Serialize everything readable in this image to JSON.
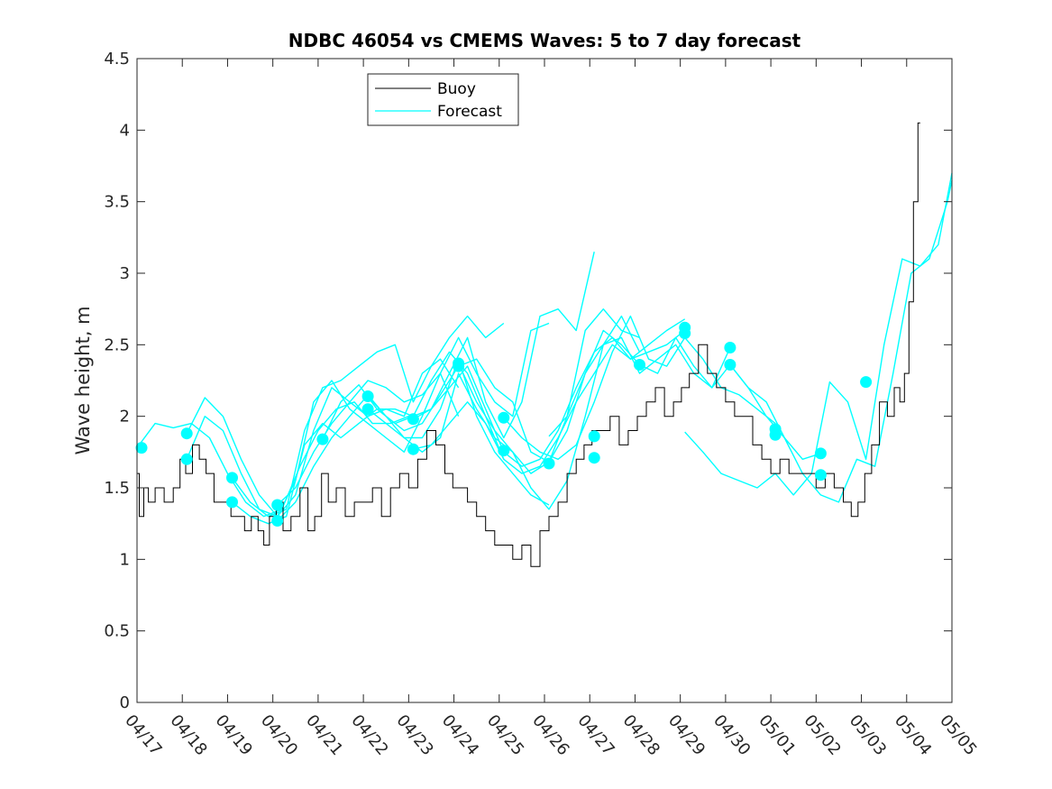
{
  "chart_data": {
    "type": "line",
    "title": "NDBC 46054 vs CMEMS Waves: 5 to 7 day forecast",
    "xlabel": "",
    "ylabel": "Wave height, m",
    "xlim": [
      "04/17",
      "05/05"
    ],
    "ylim": [
      0,
      4.5
    ],
    "yticks": [
      "0",
      "0.5",
      "1",
      "1.5",
      "2",
      "2.5",
      "3",
      "3.5",
      "4",
      "4.5"
    ],
    "xticks": [
      "04/17",
      "04/18",
      "04/19",
      "04/20",
      "04/21",
      "04/22",
      "04/23",
      "04/24",
      "04/25",
      "04/26",
      "04/27",
      "04/28",
      "04/29",
      "04/30",
      "05/01",
      "05/02",
      "05/03",
      "05/04",
      "05/05"
    ],
    "grid": false,
    "legend": {
      "placement": "top-left",
      "entries": [
        "Buoy",
        "Forecast"
      ]
    },
    "colors": {
      "buoy": "#000000",
      "forecast": "#00ffff",
      "axes": "#262626"
    },
    "series": [
      {
        "name": "Buoy",
        "style": "black-line",
        "x": [
          0,
          0.1,
          0.2,
          0.3,
          0.5,
          0.7,
          0.9,
          1.0,
          1.15,
          1.3,
          1.45,
          1.6,
          1.8,
          2.0,
          2.15,
          2.3,
          2.45,
          2.6,
          2.75,
          2.85,
          3.0,
          3.15,
          3.3,
          3.5,
          3.7,
          3.85,
          4.0,
          4.15,
          4.3,
          4.5,
          4.7,
          4.9,
          5.1,
          5.3,
          5.5,
          5.7,
          5.9,
          6.1,
          6.3,
          6.5,
          6.7,
          6.9,
          7.05,
          7.2,
          7.4,
          7.6,
          7.8,
          8.0,
          8.2,
          8.4,
          8.6,
          8.8,
          9.0,
          9.2,
          9.4,
          9.6,
          9.8,
          9.95,
          10.15,
          10.35,
          10.55,
          10.75,
          10.95,
          11.15,
          11.35,
          11.55,
          11.75,
          11.95,
          12.1,
          12.3,
          12.5,
          12.7,
          12.9,
          13.1,
          13.3,
          13.5,
          13.7,
          13.9,
          14.1,
          14.3,
          14.5,
          14.7,
          14.9,
          15.1,
          15.3,
          15.5,
          15.7,
          15.85,
          16.0,
          16.15,
          16.3,
          16.5,
          16.65,
          16.8,
          16.9,
          17.0,
          17.1,
          17.2,
          17.3
        ],
        "values": [
          1.6,
          1.3,
          1.5,
          1.4,
          1.5,
          1.4,
          1.5,
          1.7,
          1.6,
          1.8,
          1.7,
          1.6,
          1.4,
          1.4,
          1.3,
          1.3,
          1.2,
          1.3,
          1.2,
          1.1,
          1.3,
          1.4,
          1.2,
          1.3,
          1.5,
          1.2,
          1.3,
          1.6,
          1.4,
          1.5,
          1.3,
          1.4,
          1.4,
          1.5,
          1.3,
          1.5,
          1.6,
          1.5,
          1.7,
          1.9,
          1.8,
          1.6,
          1.5,
          1.5,
          1.4,
          1.3,
          1.2,
          1.1,
          1.1,
          1.0,
          1.1,
          0.95,
          1.2,
          1.3,
          1.4,
          1.6,
          1.7,
          1.8,
          1.9,
          1.9,
          2.0,
          1.8,
          1.9,
          2.0,
          2.1,
          2.2,
          2.0,
          2.1,
          2.2,
          2.3,
          2.5,
          2.3,
          2.2,
          2.1,
          2.0,
          2.0,
          1.8,
          1.7,
          1.6,
          1.7,
          1.6,
          1.6,
          1.6,
          1.5,
          1.6,
          1.5,
          1.4,
          1.3,
          1.4,
          1.6,
          1.8,
          2.1,
          2.0,
          2.2,
          2.1,
          2.3,
          2.8,
          3.5,
          4.05
        ]
      },
      {
        "name": "Forecast",
        "style": "cyan-line",
        "x": [
          0,
          0.4,
          0.8,
          1.2,
          1.6,
          2.0,
          2.4,
          2.8,
          3.2,
          3.6,
          4.0,
          4.4,
          4.8,
          5.2,
          5.6,
          6.0
        ],
        "values": [
          1.78,
          1.95,
          1.92,
          1.95,
          1.85,
          1.6,
          1.4,
          1.3,
          1.35,
          1.65,
          1.9,
          2.05,
          2.1,
          1.95,
          1.95,
          2.0
        ]
      },
      {
        "x": [
          1.1,
          1.5,
          1.9,
          2.3,
          2.7,
          3.1,
          3.5,
          3.9,
          4.3,
          4.7,
          5.1,
          5.5,
          5.9,
          6.3,
          6.7,
          7.1
        ],
        "values": [
          1.88,
          2.13,
          2.0,
          1.7,
          1.45,
          1.3,
          1.45,
          1.9,
          2.2,
          2.1,
          2.0,
          2.05,
          2.0,
          2.3,
          2.4,
          2.2
        ]
      },
      {
        "x": [
          1.1,
          1.5,
          1.9,
          2.3,
          2.7,
          3.1,
          3.5,
          3.9,
          4.3,
          4.7,
          5.1,
          5.5,
          5.9,
          6.3,
          6.7,
          7.1
        ],
        "values": [
          1.7,
          2.0,
          1.9,
          1.6,
          1.35,
          1.3,
          1.55,
          2.1,
          2.25,
          2.05,
          1.95,
          1.85,
          1.75,
          2.0,
          2.3,
          2.0
        ]
      },
      {
        "x": [
          2.1,
          2.5,
          2.9,
          3.3,
          3.7,
          4.1,
          4.5,
          4.9,
          5.3,
          5.7,
          6.1,
          6.5,
          6.9,
          7.3,
          7.7,
          8.1
        ],
        "values": [
          1.57,
          1.4,
          1.3,
          1.35,
          1.9,
          2.2,
          2.25,
          2.35,
          2.45,
          2.5,
          2.1,
          2.35,
          2.55,
          2.7,
          2.55,
          2.65
        ]
      },
      {
        "x": [
          2.1,
          2.5,
          2.9,
          3.3,
          3.7,
          4.1,
          4.5,
          4.9,
          5.3,
          5.7,
          6.1,
          6.5,
          6.9,
          7.3,
          7.7,
          8.1
        ],
        "values": [
          1.4,
          1.3,
          1.25,
          1.3,
          1.8,
          1.95,
          1.85,
          1.95,
          2.05,
          2.05,
          2.0,
          2.25,
          2.45,
          2.3,
          2.0,
          1.7
        ]
      },
      {
        "x": [
          3.1,
          3.5,
          3.9,
          4.3,
          4.7,
          5.1,
          5.5,
          5.9,
          6.3,
          6.7,
          7.1,
          7.5,
          7.9,
          8.3,
          8.7,
          9.1
        ],
        "values": [
          1.38,
          1.5,
          1.75,
          1.95,
          2.1,
          2.25,
          2.2,
          2.1,
          2.15,
          2.3,
          2.55,
          2.3,
          2.1,
          2.0,
          2.6,
          2.65
        ]
      },
      {
        "x": [
          3.1,
          3.5,
          3.9,
          4.3,
          4.7,
          5.1,
          5.5,
          5.9,
          6.3,
          6.7,
          7.1,
          7.5,
          7.9,
          8.3,
          8.7,
          9.1
        ],
        "values": [
          1.27,
          1.4,
          1.65,
          1.85,
          2.0,
          2.15,
          2.0,
          1.85,
          1.85,
          2.05,
          2.4,
          2.0,
          1.75,
          1.6,
          1.45,
          1.38
        ]
      },
      {
        "x": [
          4.1,
          4.5,
          4.9,
          5.3,
          5.7,
          6.1,
          6.5,
          6.9,
          7.3,
          7.7,
          8.1,
          8.5,
          8.9,
          9.3,
          9.7,
          10.1
        ],
        "values": [
          1.84,
          2.1,
          2.22,
          2.05,
          1.95,
          2.0,
          2.05,
          2.3,
          2.55,
          2.1,
          1.85,
          2.1,
          2.7,
          2.75,
          2.6,
          3.15
        ]
      },
      {
        "x": [
          5.1,
          5.5,
          5.9,
          6.3,
          6.7,
          7.1,
          7.5,
          7.9,
          8.3,
          8.7,
          9.1,
          9.5,
          9.9,
          10.3,
          10.7,
          11.1
        ],
        "values": [
          2.14,
          2.0,
          1.9,
          1.95,
          2.15,
          2.35,
          2.4,
          2.2,
          2.1,
          1.75,
          1.68,
          2.0,
          2.6,
          2.75,
          2.6,
          2.55
        ]
      },
      {
        "x": [
          5.1,
          5.5,
          5.9,
          6.3,
          6.7,
          7.1,
          7.5,
          7.9,
          8.3,
          8.7,
          9.1,
          9.5,
          9.9,
          10.3,
          10.7,
          11.1
        ],
        "values": [
          2.05,
          1.95,
          1.85,
          1.75,
          1.85,
          2.3,
          2.05,
          1.85,
          1.75,
          1.5,
          1.35,
          1.55,
          2.0,
          2.5,
          2.7,
          2.45
        ]
      },
      {
        "x": [
          6.1,
          6.5,
          6.9,
          7.3,
          7.7,
          8.1,
          8.5,
          8.9,
          9.3,
          9.7,
          10.1,
          10.5,
          10.9,
          11.3,
          11.7,
          12.1
        ],
        "values": [
          1.98,
          2.05,
          2.2,
          2.35,
          2.05,
          1.75,
          1.65,
          1.7,
          1.9,
          2.2,
          2.45,
          2.55,
          2.4,
          2.5,
          2.6,
          2.68
        ]
      },
      {
        "x": [
          6.1,
          6.5,
          6.9,
          7.3,
          7.7,
          8.1,
          8.5,
          8.9,
          9.3,
          9.7,
          10.1,
          10.5,
          10.9,
          11.3,
          11.7,
          12.1
        ],
        "values": [
          1.77,
          1.8,
          1.95,
          2.1,
          1.95,
          1.7,
          1.6,
          1.65,
          1.85,
          2.1,
          2.3,
          2.5,
          2.4,
          2.45,
          2.5,
          2.6
        ]
      },
      {
        "x": [
          7.1,
          7.5,
          7.9,
          8.3,
          8.7,
          9.1,
          9.5,
          9.9,
          10.3,
          10.7,
          11.1,
          11.5,
          11.9,
          12.3,
          12.7,
          13.1
        ],
        "values": [
          2.37,
          2.1,
          1.9,
          1.75,
          1.6,
          1.68,
          1.9,
          2.3,
          2.5,
          2.55,
          2.3,
          2.4,
          2.5,
          2.3,
          2.2,
          2.48
        ]
      },
      {
        "x": [
          8.1,
          8.5,
          8.9,
          9.3,
          9.7,
          10.1,
          10.5,
          10.9,
          11.3,
          11.7,
          12.1,
          12.5,
          12.9,
          13.3,
          13.7,
          14.1
        ],
        "values": [
          1.99,
          1.85,
          1.75,
          1.7,
          1.8,
          2.1,
          2.45,
          2.7,
          2.4,
          2.35,
          2.55,
          2.4,
          2.2,
          2.15,
          2.05,
          1.95
        ]
      },
      {
        "x": [
          9.1,
          9.5,
          9.9,
          10.3,
          10.7,
          11.1,
          11.5,
          11.9,
          12.3,
          12.7,
          13.1,
          13.5,
          13.9,
          14.3,
          14.7,
          15.1
        ],
        "values": [
          1.86,
          2.0,
          2.3,
          2.6,
          2.5,
          2.36,
          2.3,
          2.55,
          2.35,
          2.2,
          2.36,
          2.2,
          2.1,
          1.85,
          1.7,
          1.74
        ]
      },
      {
        "x": [
          12.1,
          12.5,
          12.9,
          13.3,
          13.7,
          14.1,
          14.5,
          14.9,
          15.3,
          15.7,
          16.1,
          16.5,
          16.9,
          17.3,
          17.7,
          18.0
        ],
        "values": [
          1.89,
          1.75,
          1.6,
          1.55,
          1.5,
          1.6,
          1.45,
          1.6,
          2.24,
          2.1,
          1.7,
          2.5,
          3.1,
          3.05,
          3.2,
          3.7
        ]
      },
      {
        "x": [
          13.1,
          13.5,
          13.9,
          14.3,
          14.7,
          15.1,
          15.5,
          15.9,
          16.3,
          16.7,
          17.1,
          17.5,
          17.9,
          18.0
        ],
        "values": [
          2.36,
          2.2,
          2.0,
          1.85,
          1.6,
          1.45,
          1.4,
          1.7,
          1.65,
          2.3,
          3.0,
          3.1,
          3.5,
          3.65
        ]
      }
    ],
    "markers": [
      {
        "x": 0.1,
        "value": 1.78
      },
      {
        "x": 1.1,
        "value": 1.88
      },
      {
        "x": 1.1,
        "value": 1.7
      },
      {
        "x": 2.1,
        "value": 1.57
      },
      {
        "x": 2.1,
        "value": 1.4
      },
      {
        "x": 3.1,
        "value": 1.38
      },
      {
        "x": 3.1,
        "value": 1.27
      },
      {
        "x": 4.1,
        "value": 1.84
      },
      {
        "x": 5.1,
        "value": 2.14
      },
      {
        "x": 5.1,
        "value": 2.05
      },
      {
        "x": 6.1,
        "value": 1.98
      },
      {
        "x": 6.1,
        "value": 1.77
      },
      {
        "x": 7.1,
        "value": 2.37
      },
      {
        "x": 7.1,
        "value": 2.35
      },
      {
        "x": 8.1,
        "value": 1.99
      },
      {
        "x": 8.1,
        "value": 1.76
      },
      {
        "x": 9.1,
        "value": 1.67
      },
      {
        "x": 10.1,
        "value": 1.86
      },
      {
        "x": 10.1,
        "value": 1.71
      },
      {
        "x": 11.1,
        "value": 2.36
      },
      {
        "x": 12.1,
        "value": 2.62
      },
      {
        "x": 12.1,
        "value": 2.58
      },
      {
        "x": 13.1,
        "value": 2.48
      },
      {
        "x": 13.1,
        "value": 2.36
      },
      {
        "x": 14.1,
        "value": 1.91
      },
      {
        "x": 14.1,
        "value": 1.87
      },
      {
        "x": 15.1,
        "value": 1.74
      },
      {
        "x": 15.1,
        "value": 1.59
      },
      {
        "x": 16.1,
        "value": 2.24
      }
    ]
  }
}
